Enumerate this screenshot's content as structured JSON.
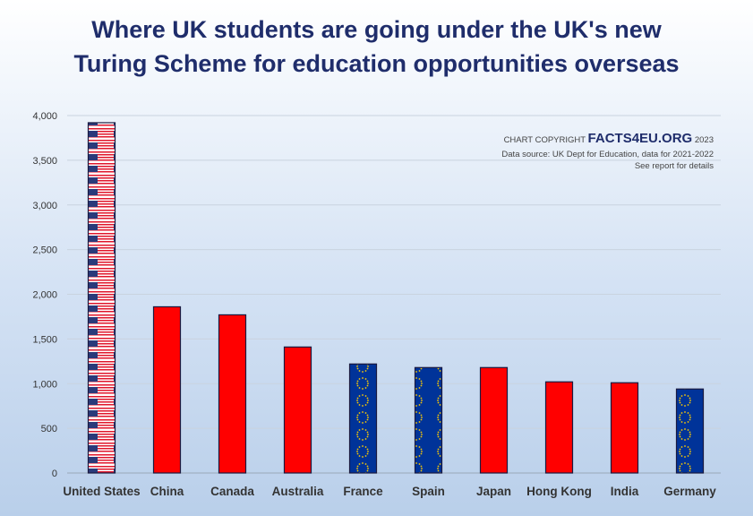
{
  "title_line1": "Where UK students are going under the UK's new",
  "title_line2": "Turing Scheme for education opportunities overseas",
  "credit": {
    "prefix": "CHART COPYRIGHT",
    "brand": "FACTS4EU.ORG",
    "year": "2023",
    "source": "Data source: UK Dept for Education, data for 2021-2022",
    "note": "See report for details"
  },
  "colors": {
    "red_bar": "#ff0000",
    "eu_blue": "#003399",
    "eu_star": "#ffcc00",
    "title": "#1f2d6b"
  },
  "chart_data": {
    "type": "bar",
    "title": "Where UK students are going under the UK's new Turing Scheme for education opportunities overseas",
    "xlabel": "",
    "ylabel": "",
    "categories": [
      "United States",
      "China",
      "Canada",
      "Australia",
      "France",
      "Spain",
      "Japan",
      "Hong Kong",
      "India",
      "Germany"
    ],
    "values": [
      3920,
      1860,
      1770,
      1410,
      1220,
      1180,
      1180,
      1020,
      1010,
      940
    ],
    "fills": [
      "us-flag",
      "red",
      "red",
      "red",
      "eu-flag",
      "eu-flag",
      "red",
      "red",
      "red",
      "eu-flag"
    ],
    "ylim": [
      0,
      4000
    ],
    "yticks": [
      0,
      500,
      1000,
      1500,
      2000,
      2500,
      3000,
      3500,
      4000
    ],
    "ytick_labels": [
      "0",
      "500",
      "1,000",
      "1,500",
      "2,000",
      "2,500",
      "3,000",
      "3,500",
      "4,000"
    ],
    "grid": true,
    "legend": "none"
  }
}
